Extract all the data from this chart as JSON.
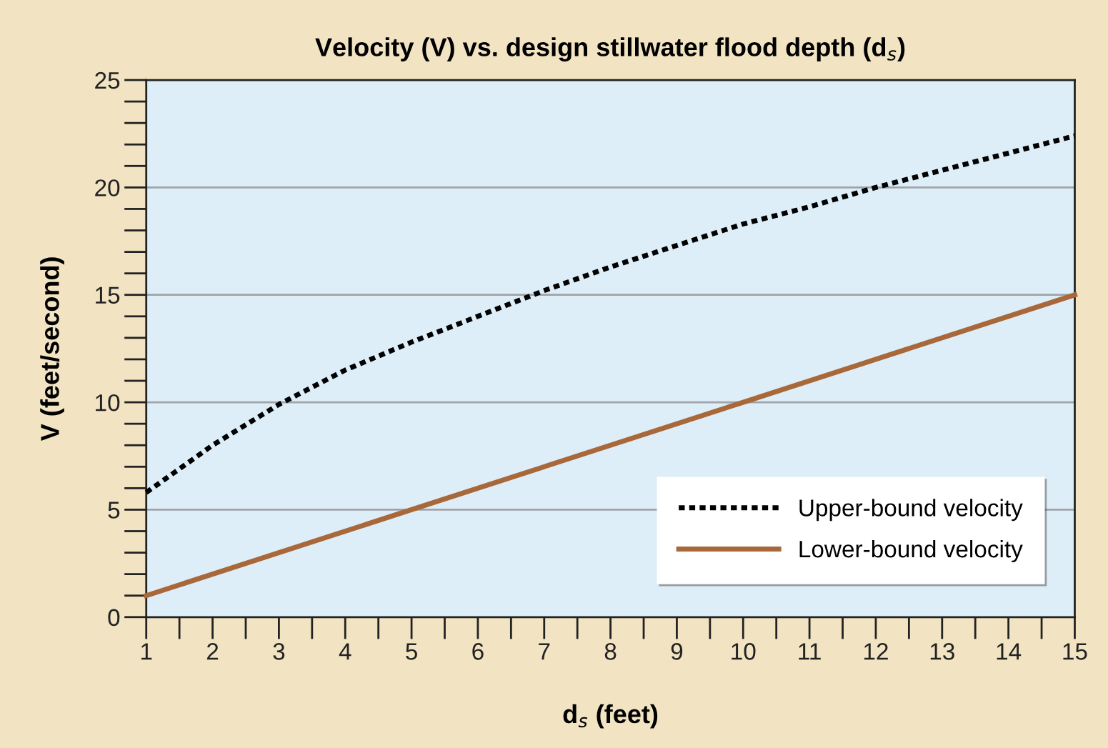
{
  "chart_data": {
    "type": "line",
    "title": "Velocity (V) vs. design stillwater flood depth (d$_{s}$)",
    "xlabel": "d$_{s}$ (feet)",
    "ylabel": "V (feet/second)",
    "xlim": [
      1,
      15
    ],
    "ylim": [
      0,
      25
    ],
    "xticks": [
      1,
      2,
      3,
      4,
      5,
      6,
      7,
      8,
      9,
      10,
      11,
      12,
      13,
      14,
      15
    ],
    "yticks": [
      0,
      5,
      10,
      15,
      20,
      25
    ],
    "grid": "y",
    "legend": "bottom right",
    "series": [
      {
        "name": "Upper-bound velocity",
        "color": "#000000",
        "line_style": "dotted",
        "x": [
          1,
          2,
          3,
          4,
          5,
          6,
          7,
          8,
          9,
          10,
          11,
          12,
          13,
          14,
          15
        ],
        "values": [
          5.8,
          8.0,
          9.9,
          11.5,
          12.8,
          14.0,
          15.2,
          16.3,
          17.3,
          18.3,
          19.1,
          20.0,
          20.8,
          21.6,
          22.4
        ]
      },
      {
        "name": "Lower-bound velocity",
        "color": "#a8683a",
        "line_style": "solid",
        "x": [
          1,
          5,
          10,
          15
        ],
        "values": [
          1,
          5,
          10,
          15
        ]
      }
    ]
  }
}
